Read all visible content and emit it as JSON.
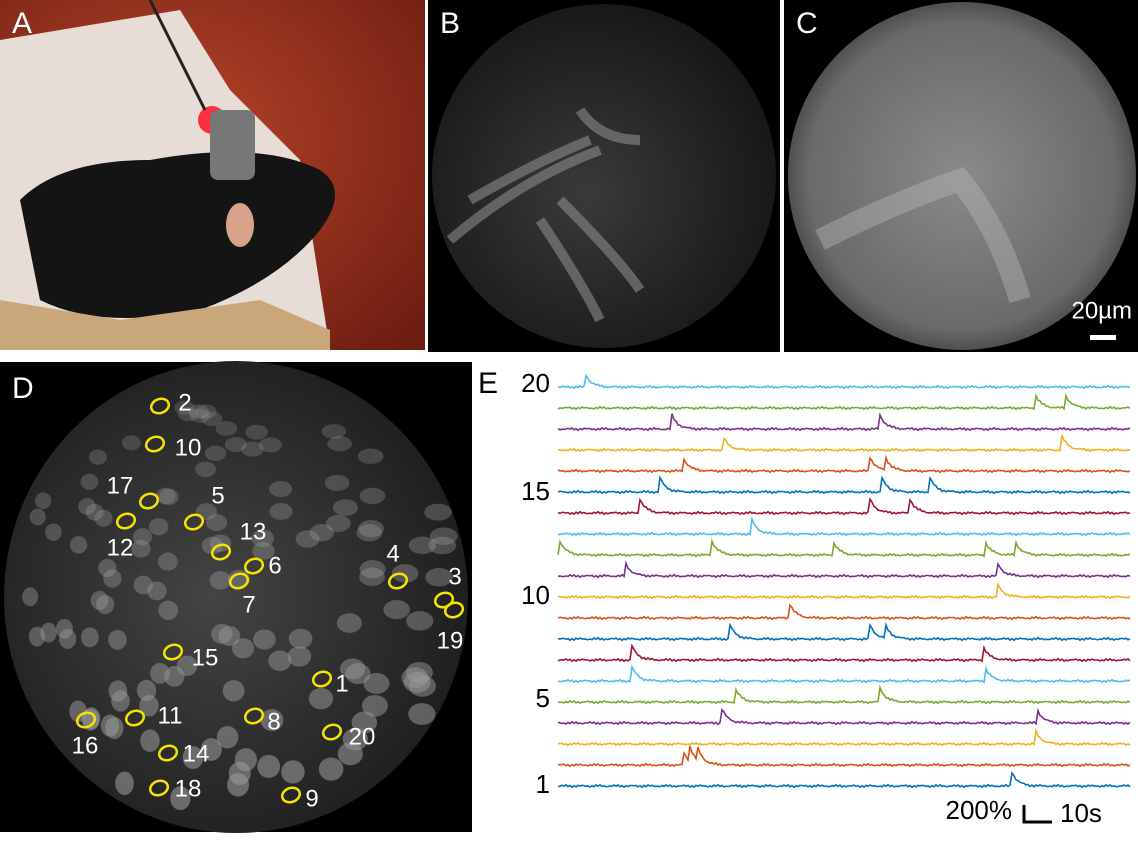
{
  "panels": {
    "a": "A",
    "b": "B",
    "c": "C",
    "d": "D",
    "e": "E"
  },
  "scale_bar_c": "20µm",
  "rois": [
    "1",
    "2",
    "3",
    "4",
    "5",
    "6",
    "7",
    "8",
    "9",
    "10",
    "11",
    "12",
    "13",
    "14",
    "15",
    "16",
    "17",
    "18",
    "19",
    "20"
  ],
  "trace_labels": [
    "1",
    "5",
    "10",
    "15",
    "20"
  ],
  "scale_bar_e": {
    "amplitude": "200%",
    "time": "10s"
  }
}
